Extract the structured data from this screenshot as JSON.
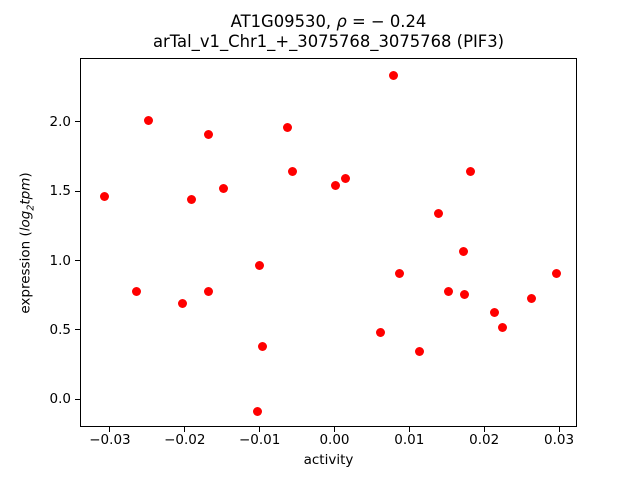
{
  "figure": {
    "background": "#ffffff",
    "text_color": "#000000"
  },
  "title": {
    "line1_pre": "AT1G09530, ",
    "line1_rho": "ρ",
    "line1_post": " = − 0.24",
    "line2": "arTal_v1_Chr1_+_3075768_3075768 (PIF3)"
  },
  "ylabel_parts": {
    "pre": "expression (",
    "log": "log",
    "sub": "2",
    "tpm": "tpm",
    "post": ")"
  },
  "chart_data": {
    "type": "scatter",
    "title": "AT1G09530, ρ = −0.24",
    "subtitle": "arTal_v1_Chr1_+_3075768_3075768 (PIF3)",
    "xlabel": "activity",
    "ylabel": "expression (log2tpm)",
    "marker_color": "#ff0000",
    "marker_diameter_px": 9,
    "grid": false,
    "legend": null,
    "xlim": [
      -0.034,
      0.0324
    ],
    "ylim": [
      -0.202,
      2.462
    ],
    "xticks": [
      {
        "v": -0.03,
        "label": "−0.03"
      },
      {
        "v": -0.02,
        "label": "−0.02"
      },
      {
        "v": -0.01,
        "label": "−0.01"
      },
      {
        "v": 0.0,
        "label": "0.00"
      },
      {
        "v": 0.01,
        "label": "0.01"
      },
      {
        "v": 0.02,
        "label": "0.02"
      },
      {
        "v": 0.03,
        "label": "0.03"
      }
    ],
    "yticks": [
      {
        "v": 0.0,
        "label": "0.0"
      },
      {
        "v": 0.5,
        "label": "0.5"
      },
      {
        "v": 1.0,
        "label": "1.0"
      },
      {
        "v": 1.5,
        "label": "1.5"
      },
      {
        "v": 2.0,
        "label": "2.0"
      }
    ],
    "points": [
      [
        -0.0308,
        1.47
      ],
      [
        -0.0266,
        0.78
      ],
      [
        -0.025,
        2.02
      ],
      [
        -0.0204,
        0.7
      ],
      [
        -0.0193,
        1.45
      ],
      [
        -0.017,
        1.92
      ],
      [
        -0.0169,
        0.78
      ],
      [
        -0.015,
        1.53
      ],
      [
        -0.0104,
        -0.08
      ],
      [
        -0.0102,
        0.97
      ],
      [
        -0.0097,
        0.39
      ],
      [
        -0.0064,
        1.97
      ],
      [
        -0.0058,
        1.65
      ],
      [
        0.0,
        1.55
      ],
      [
        0.0013,
        1.6
      ],
      [
        0.006,
        0.49
      ],
      [
        0.0077,
        2.34
      ],
      [
        0.0086,
        0.91
      ],
      [
        0.0112,
        0.35
      ],
      [
        0.0137,
        1.35
      ],
      [
        0.0151,
        0.78
      ],
      [
        0.0171,
        1.07
      ],
      [
        0.0173,
        0.76
      ],
      [
        0.018,
        1.65
      ],
      [
        0.0212,
        0.63
      ],
      [
        0.0223,
        0.52
      ],
      [
        0.0262,
        0.73
      ],
      [
        0.0295,
        0.91
      ]
    ]
  }
}
